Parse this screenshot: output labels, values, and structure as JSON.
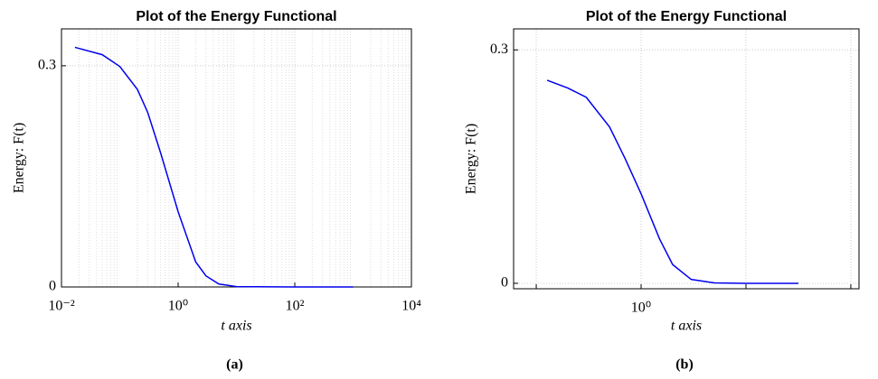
{
  "chart_data": [
    {
      "type": "line",
      "title": "Plot of the Energy Functional",
      "xlabel": "t axis",
      "ylabel": "Energy: F(t)",
      "caption": "(a)",
      "xscale": "log",
      "xlim": [
        0.01,
        10000
      ],
      "xticks": [
        {
          "value": 0.01,
          "label": "10⁻²"
        },
        {
          "value": 1,
          "label": "10⁰"
        },
        {
          "value": 100,
          "label": "10²"
        },
        {
          "value": 10000,
          "label": "10⁴"
        }
      ],
      "ylim": [
        0,
        0.35
      ],
      "yticks": [
        0,
        0.3
      ],
      "grid": true,
      "minor_grid": true,
      "color": "#0000ee",
      "x": [
        0.017,
        0.05,
        0.1,
        0.2,
        0.3,
        0.5,
        1,
        2,
        3,
        5,
        10,
        100,
        1000
      ],
      "values": [
        0.325,
        0.315,
        0.299,
        0.268,
        0.237,
        0.182,
        0.102,
        0.034,
        0.015,
        0.004,
        0.0005,
        0,
        0
      ]
    },
    {
      "type": "line",
      "title": "Plot of the Energy Functional",
      "xlabel": "t axis",
      "ylabel": "Energy: F(t)",
      "caption": "(b)",
      "xscale": "log",
      "xlim": [
        0.0608,
        119.7
      ],
      "xticks": [
        {
          "value": 0.1,
          "label": null
        },
        {
          "value": 1,
          "label": "10⁰"
        },
        {
          "value": 10,
          "label": null
        },
        {
          "value": 100,
          "label": null
        }
      ],
      "ylim": [
        -0.007,
        0.327
      ],
      "yticks": [
        0,
        0.3
      ],
      "grid": true,
      "minor_grid": false,
      "color": "#0000ee",
      "x": [
        0.127,
        0.2,
        0.3,
        0.5,
        0.7,
        1,
        1.5,
        2,
        3,
        5,
        10,
        31.6
      ],
      "values": [
        0.261,
        0.251,
        0.239,
        0.201,
        0.161,
        0.115,
        0.057,
        0.024,
        0.005,
        0.0005,
        0,
        0
      ]
    }
  ]
}
